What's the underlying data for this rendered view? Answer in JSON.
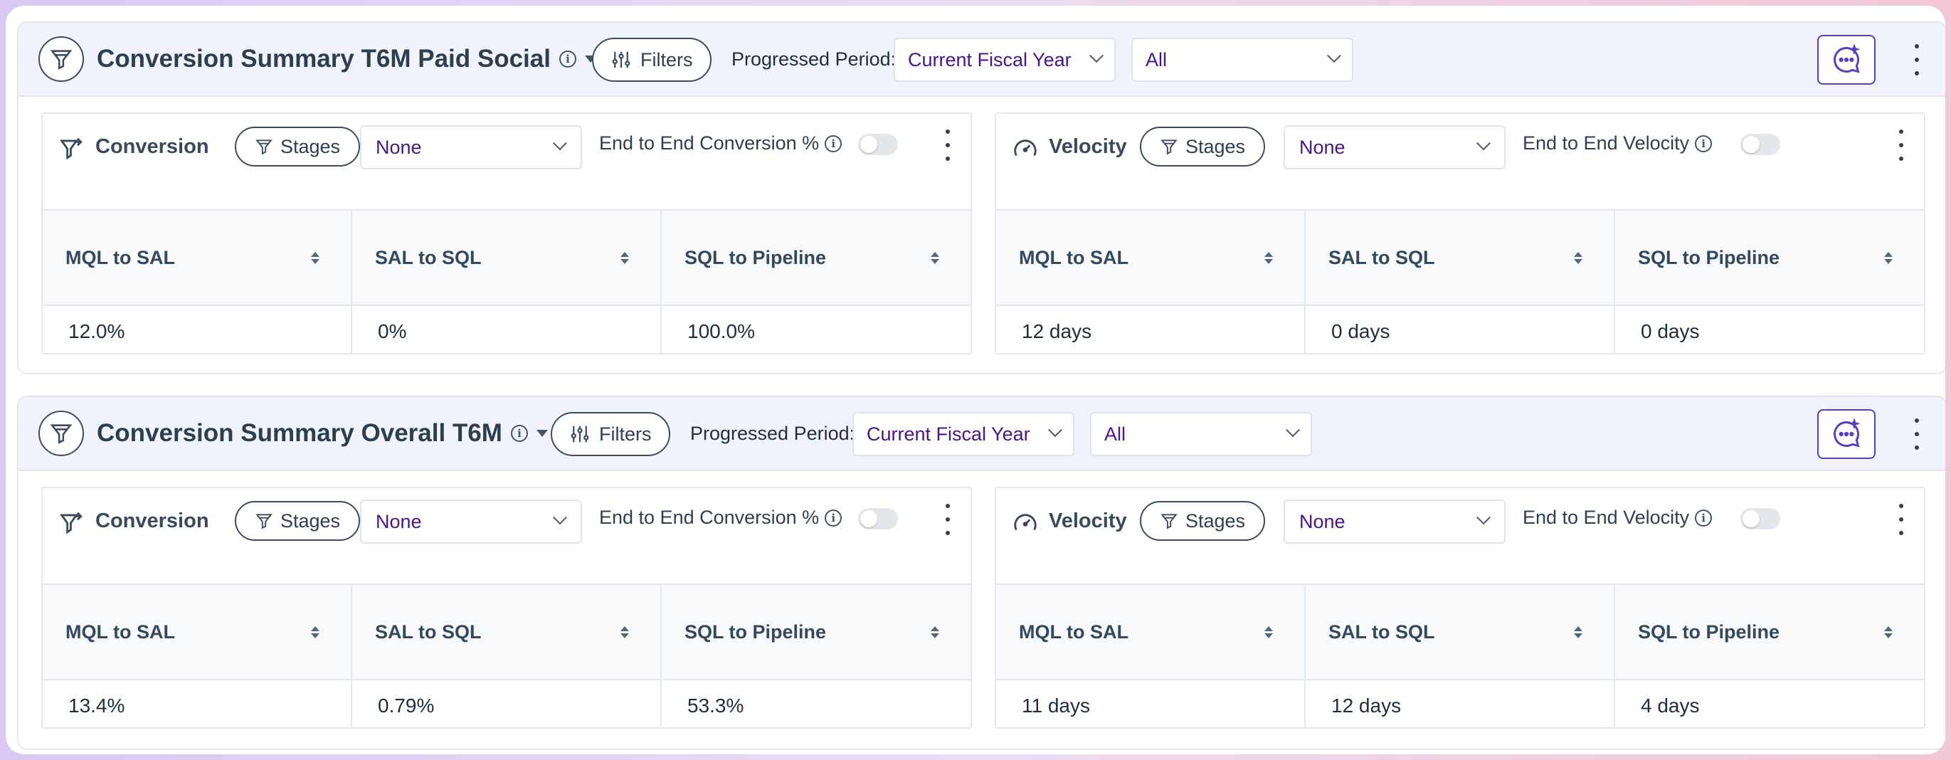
{
  "colors": {
    "accent": "#4a148c",
    "ai_button": "#5b3cc4",
    "header_bg": "#f1f3fc"
  },
  "panels": [
    {
      "title": "Conversion Summary T6M Paid Social",
      "filters_label": "Filters",
      "progressed_period_label": "Progressed Period:",
      "period_value": "Current Fiscal Year",
      "scope_value": "All",
      "conversion": {
        "title": "Conversion",
        "stages_label": "Stages",
        "select_value": "None",
        "toggle_label": "End to End Conversion %",
        "headers": [
          "MQL to SAL",
          "SAL to SQL",
          "SQL to Pipeline"
        ],
        "values": [
          "12.0%",
          "0%",
          "100.0%"
        ]
      },
      "velocity": {
        "title": "Velocity",
        "stages_label": "Stages",
        "select_value": "None",
        "toggle_label": "End to End Velocity",
        "headers": [
          "MQL to SAL",
          "SAL to SQL",
          "SQL to Pipeline"
        ],
        "values": [
          "12 days",
          "0 days",
          "0 days"
        ]
      }
    },
    {
      "title": "Conversion Summary Overall T6M",
      "filters_label": "Filters",
      "progressed_period_label": "Progressed Period:",
      "period_value": "Current Fiscal Year",
      "scope_value": "All",
      "conversion": {
        "title": "Conversion",
        "stages_label": "Stages",
        "select_value": "None",
        "toggle_label": "End to End Conversion %",
        "headers": [
          "MQL to SAL",
          "SAL to SQL",
          "SQL to Pipeline"
        ],
        "values": [
          "13.4%",
          "0.79%",
          "53.3%"
        ]
      },
      "velocity": {
        "title": "Velocity",
        "stages_label": "Stages",
        "select_value": "None",
        "toggle_label": "End to End Velocity",
        "headers": [
          "MQL to SAL",
          "SAL to SQL",
          "SQL to Pipeline"
        ],
        "values": [
          "11 days",
          "12 days",
          "4 days"
        ]
      }
    }
  ]
}
